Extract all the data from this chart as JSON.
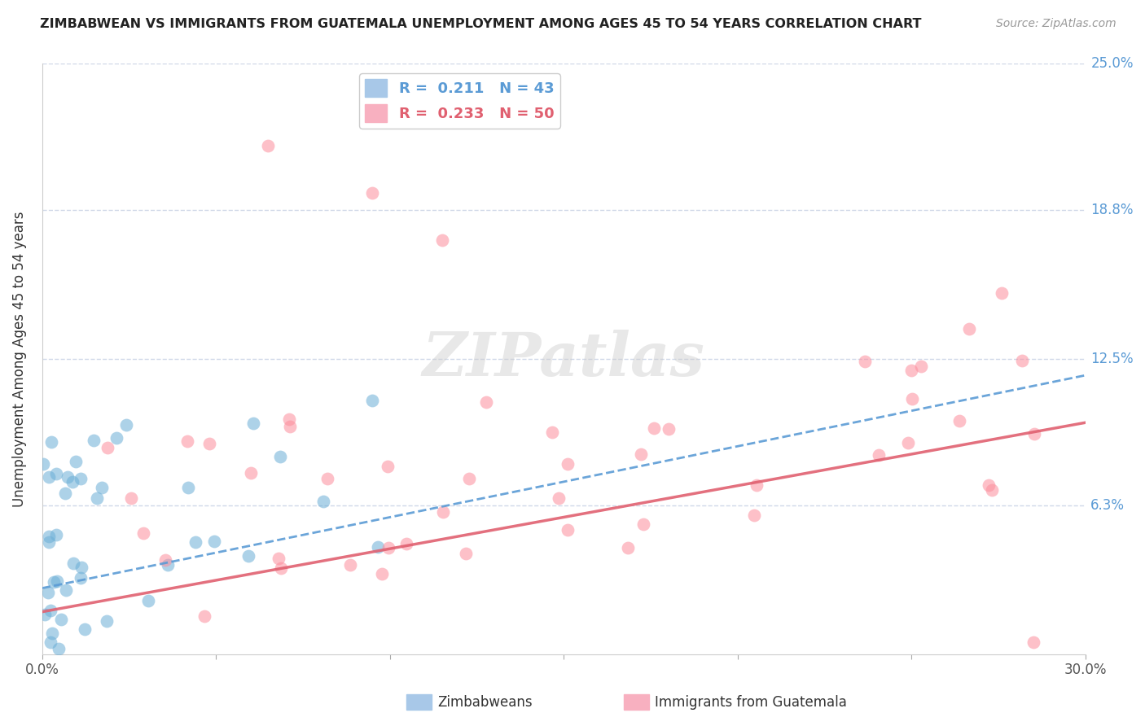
{
  "title": "ZIMBABWEAN VS IMMIGRANTS FROM GUATEMALA UNEMPLOYMENT AMONG AGES 45 TO 54 YEARS CORRELATION CHART",
  "source": "Source: ZipAtlas.com",
  "ylabel": "Unemployment Among Ages 45 to 54 years",
  "xlim": [
    0.0,
    0.3
  ],
  "ylim": [
    0.0,
    0.25
  ],
  "zimbabwean_color": "#6baed6",
  "guatemala_color": "#fc8d9c",
  "trend_zim_color": "#5b9bd5",
  "trend_guat_color": "#e06070",
  "background_color": "#ffffff",
  "grid_color": "#d0d8e8",
  "watermark": "ZIPatlas",
  "R_zim": 0.211,
  "N_zim": 43,
  "R_guat": 0.233,
  "N_guat": 50,
  "zim_trend_x": [
    0.0,
    0.3
  ],
  "zim_trend_y": [
    0.028,
    0.118
  ],
  "guat_trend_x": [
    0.0,
    0.3
  ],
  "guat_trend_y": [
    0.018,
    0.098
  ]
}
